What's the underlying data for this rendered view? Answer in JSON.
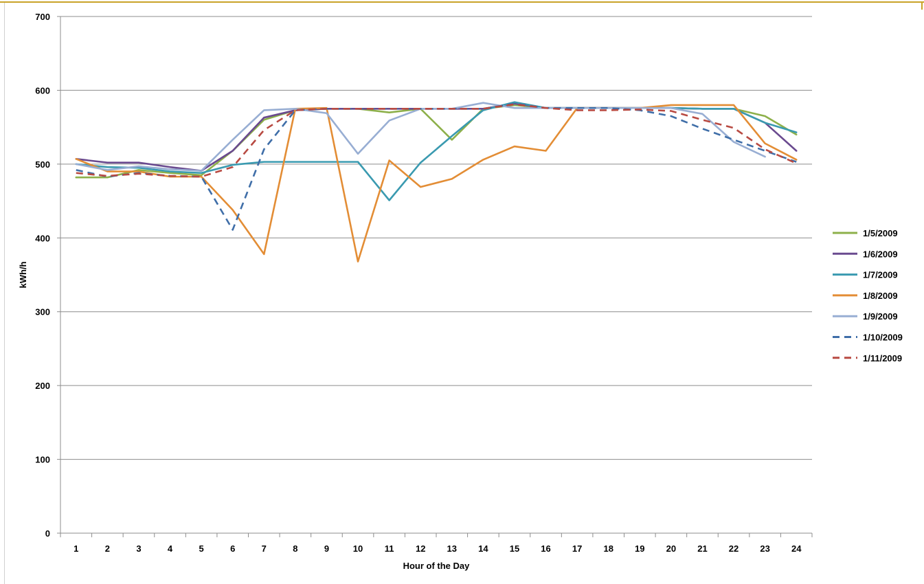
{
  "chart_data": {
    "type": "line",
    "title": "",
    "xlabel": "Hour of the Day",
    "ylabel": "kWh/h",
    "ylim": [
      0,
      700
    ],
    "yticks": [
      "0",
      "100",
      "200",
      "300",
      "400",
      "500",
      "600",
      "700"
    ],
    "categories": [
      "1",
      "2",
      "3",
      "4",
      "5",
      "6",
      "7",
      "8",
      "9",
      "10",
      "11",
      "12",
      "13",
      "14",
      "15",
      "16",
      "17",
      "18",
      "19",
      "20",
      "21",
      "22",
      "23",
      "24"
    ],
    "grid": "horizontal",
    "legend_position": "right",
    "series": [
      {
        "name": "1/5/2009",
        "color": "#8db04a",
        "dash": false,
        "values": [
          482,
          482,
          492,
          488,
          485,
          518,
          560,
          573,
          575,
          575,
          570,
          575,
          533,
          575,
          580,
          576,
          576,
          576,
          576,
          576,
          575,
          575,
          565,
          540
        ]
      },
      {
        "name": "1/6/2009",
        "color": "#6a4a8f",
        "dash": false,
        "values": [
          507,
          502,
          502,
          496,
          491,
          518,
          563,
          573,
          575,
          575,
          575,
          575,
          575,
          575,
          582,
          576,
          576,
          576,
          576,
          576,
          575,
          575,
          556,
          518
        ]
      },
      {
        "name": "1/7/2009",
        "color": "#3a9ab0",
        "dash": false,
        "values": [
          500,
          496,
          495,
          490,
          488,
          499,
          503,
          503,
          503,
          503,
          451,
          502,
          538,
          573,
          584,
          576,
          576,
          576,
          576,
          576,
          575,
          575,
          556,
          543
        ]
      },
      {
        "name": "1/8/2009",
        "color": "#e38d35",
        "dash": false,
        "values": [
          507,
          490,
          490,
          483,
          483,
          438,
          378,
          575,
          576,
          368,
          505,
          469,
          480,
          506,
          524,
          518,
          576,
          576,
          576,
          580,
          580,
          580,
          528,
          506
        ]
      },
      {
        "name": "1/9/2009",
        "color": "#98aed3",
        "dash": false,
        "values": [
          500,
          492,
          497,
          493,
          491,
          533,
          573,
          575,
          569,
          514,
          559,
          575,
          575,
          583,
          576,
          576,
          576,
          576,
          576,
          576,
          568,
          530,
          510,
          null
        ]
      },
      {
        "name": "1/10/2009",
        "color": "#3f6ea8",
        "dash": true,
        "values": [
          492,
          483,
          488,
          484,
          483,
          411,
          520,
          573,
          575,
          575,
          575,
          575,
          575,
          575,
          582,
          576,
          576,
          576,
          573,
          565,
          548,
          533,
          518,
          503
        ]
      },
      {
        "name": "1/11/2009",
        "color": "#b84a42",
        "dash": true,
        "values": [
          488,
          484,
          487,
          484,
          483,
          496,
          546,
          573,
          575,
          575,
          575,
          575,
          575,
          575,
          581,
          576,
          573,
          573,
          574,
          572,
          560,
          549,
          520,
          501
        ]
      }
    ]
  }
}
